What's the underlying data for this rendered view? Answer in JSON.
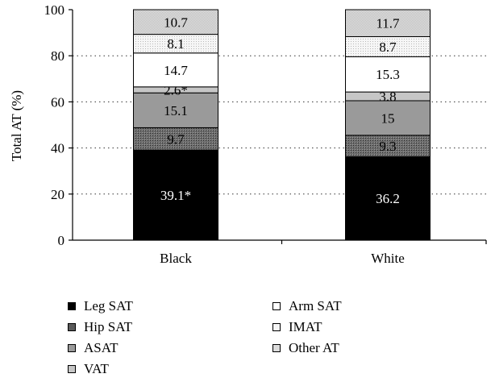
{
  "chart_data": {
    "type": "bar",
    "stacked": true,
    "categories": [
      "Black",
      "White"
    ],
    "ylabel": "Total AT (%)",
    "ylim": [
      0,
      100
    ],
    "yticks": [
      0,
      20,
      40,
      60,
      80,
      100
    ],
    "grid": "dotted horizontal",
    "legend_position": "bottom",
    "series": [
      {
        "name": "Leg SAT",
        "values": [
          39.1,
          36.2
        ],
        "labels": [
          "39.1*",
          "36.2"
        ],
        "color": "#000000",
        "label_color": "#ffffff"
      },
      {
        "name": "Hip SAT",
        "values": [
          9.7,
          9.3
        ],
        "labels": [
          "9.7",
          "9.3"
        ],
        "color": "#5a5a5a",
        "label_color": "#000000"
      },
      {
        "name": "ASAT",
        "values": [
          15.1,
          15.0
        ],
        "labels": [
          "15.1",
          "15"
        ],
        "color": "#9a9a9a",
        "label_color": "#000000"
      },
      {
        "name": "VAT",
        "values": [
          2.6,
          3.8
        ],
        "labels": [
          "2.6*",
          "3.8"
        ],
        "color": "#c6c6c6",
        "label_color": "#000000"
      },
      {
        "name": "Arm SAT",
        "values": [
          14.7,
          15.3
        ],
        "labels": [
          "14.7",
          "15.3"
        ],
        "color": "#ffffff",
        "label_color": "#000000"
      },
      {
        "name": "IMAT",
        "values": [
          8.1,
          8.7
        ],
        "labels": [
          "8.1",
          "8.7"
        ],
        "color": "#f2f2f2",
        "label_color": "#000000"
      },
      {
        "name": "Other AT",
        "values": [
          10.7,
          11.7
        ],
        "labels": [
          "10.7",
          "11.7"
        ],
        "color": "#dcdcdc",
        "label_color": "#000000"
      }
    ]
  }
}
